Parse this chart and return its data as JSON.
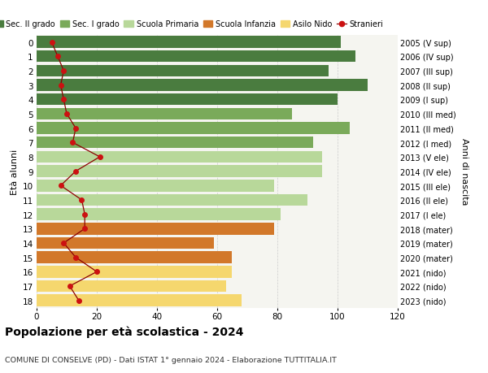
{
  "ages": [
    18,
    17,
    16,
    15,
    14,
    13,
    12,
    11,
    10,
    9,
    8,
    7,
    6,
    5,
    4,
    3,
    2,
    1,
    0
  ],
  "bar_values": [
    101,
    106,
    97,
    110,
    100,
    85,
    104,
    92,
    95,
    95,
    79,
    90,
    81,
    79,
    59,
    65,
    65,
    63,
    68
  ],
  "anni_nascita": [
    "2005 (V sup)",
    "2006 (IV sup)",
    "2007 (III sup)",
    "2008 (II sup)",
    "2009 (I sup)",
    "2010 (III med)",
    "2011 (II med)",
    "2012 (I med)",
    "2013 (V ele)",
    "2014 (IV ele)",
    "2015 (III ele)",
    "2016 (II ele)",
    "2017 (I ele)",
    "2018 (mater)",
    "2019 (mater)",
    "2020 (mater)",
    "2021 (nido)",
    "2022 (nido)",
    "2023 (nido)"
  ],
  "bar_colors": [
    "#4a7c3f",
    "#4a7c3f",
    "#4a7c3f",
    "#4a7c3f",
    "#4a7c3f",
    "#7aaa5a",
    "#7aaa5a",
    "#7aaa5a",
    "#b8d89a",
    "#b8d89a",
    "#b8d89a",
    "#b8d89a",
    "#b8d89a",
    "#d2782a",
    "#d2782a",
    "#d2782a",
    "#f5d76e",
    "#f5d76e",
    "#f5d76e"
  ],
  "stranieri_values": [
    5,
    7,
    9,
    8,
    9,
    10,
    13,
    12,
    21,
    13,
    8,
    15,
    16,
    16,
    9,
    13,
    20,
    11,
    14
  ],
  "legend_labels": [
    "Sec. II grado",
    "Sec. I grado",
    "Scuola Primaria",
    "Scuola Infanzia",
    "Asilo Nido",
    "Stranieri"
  ],
  "legend_colors": [
    "#4a7c3f",
    "#7aaa5a",
    "#b8d89a",
    "#d2782a",
    "#f5d76e",
    "#aa1111"
  ],
  "title": "Popolazione per età scolastica - 2024",
  "subtitle": "COMUNE DI CONSELVE (PD) - Dati ISTAT 1° gennaio 2024 - Elaborazione TUTTITALIA.IT",
  "ylabel_left": "Età alunni",
  "ylabel_right": "Anni di nascita",
  "xlim": [
    0,
    120
  ],
  "bg_color": "#ffffff",
  "plot_bg_color": "#f5f5f0",
  "grid_color": "#cccccc",
  "stranieri_line_color": "#8b0000",
  "stranieri_dot_color": "#cc1111"
}
